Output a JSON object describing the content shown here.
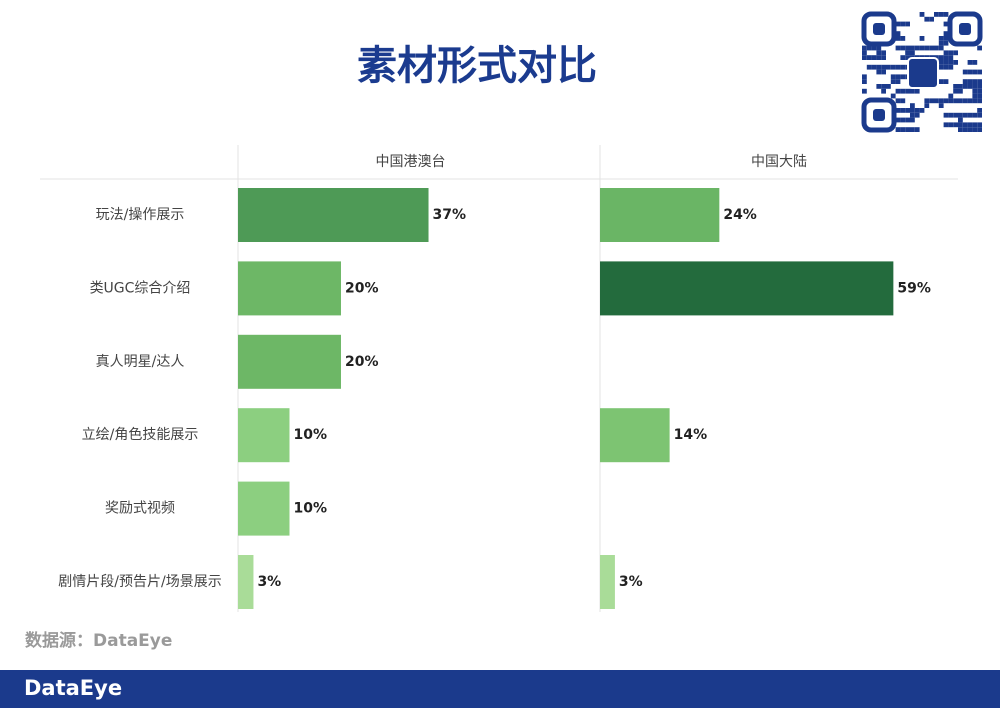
{
  "title": "素材形式对比",
  "source": "数据源：DataEye",
  "footer_logo": "DataEye",
  "chart_data": [
    {
      "type": "bar",
      "orientation": "horizontal",
      "title": "中国港澳台",
      "categories": [
        "玩法/操作展示",
        "类UGC综合介绍",
        "真人明星/达人",
        "立绘/角色技能展示",
        "奖励式视频",
        "剧情片段/预告片/场景展示"
      ],
      "values": [
        37,
        20,
        20,
        10,
        10,
        3
      ],
      "value_labels": [
        "37%",
        "20%",
        "20%",
        "10%",
        "10%",
        "3%"
      ],
      "colors": [
        "#4e9a56",
        "#6db766",
        "#6db766",
        "#8ccf80",
        "#8ccf80",
        "#a9dc98"
      ],
      "xlim": [
        0,
        67
      ]
    },
    {
      "type": "bar",
      "orientation": "horizontal",
      "title": "中国大陆",
      "values": [
        24,
        59,
        null,
        14,
        null,
        3
      ],
      "value_labels": [
        "24%",
        "59%",
        null,
        "14%",
        null,
        "3%"
      ],
      "colors": [
        "#6ab565",
        "#236b3d",
        null,
        "#7dc472",
        null,
        "#a9dc98"
      ],
      "xlim": [
        0,
        72
      ]
    }
  ]
}
